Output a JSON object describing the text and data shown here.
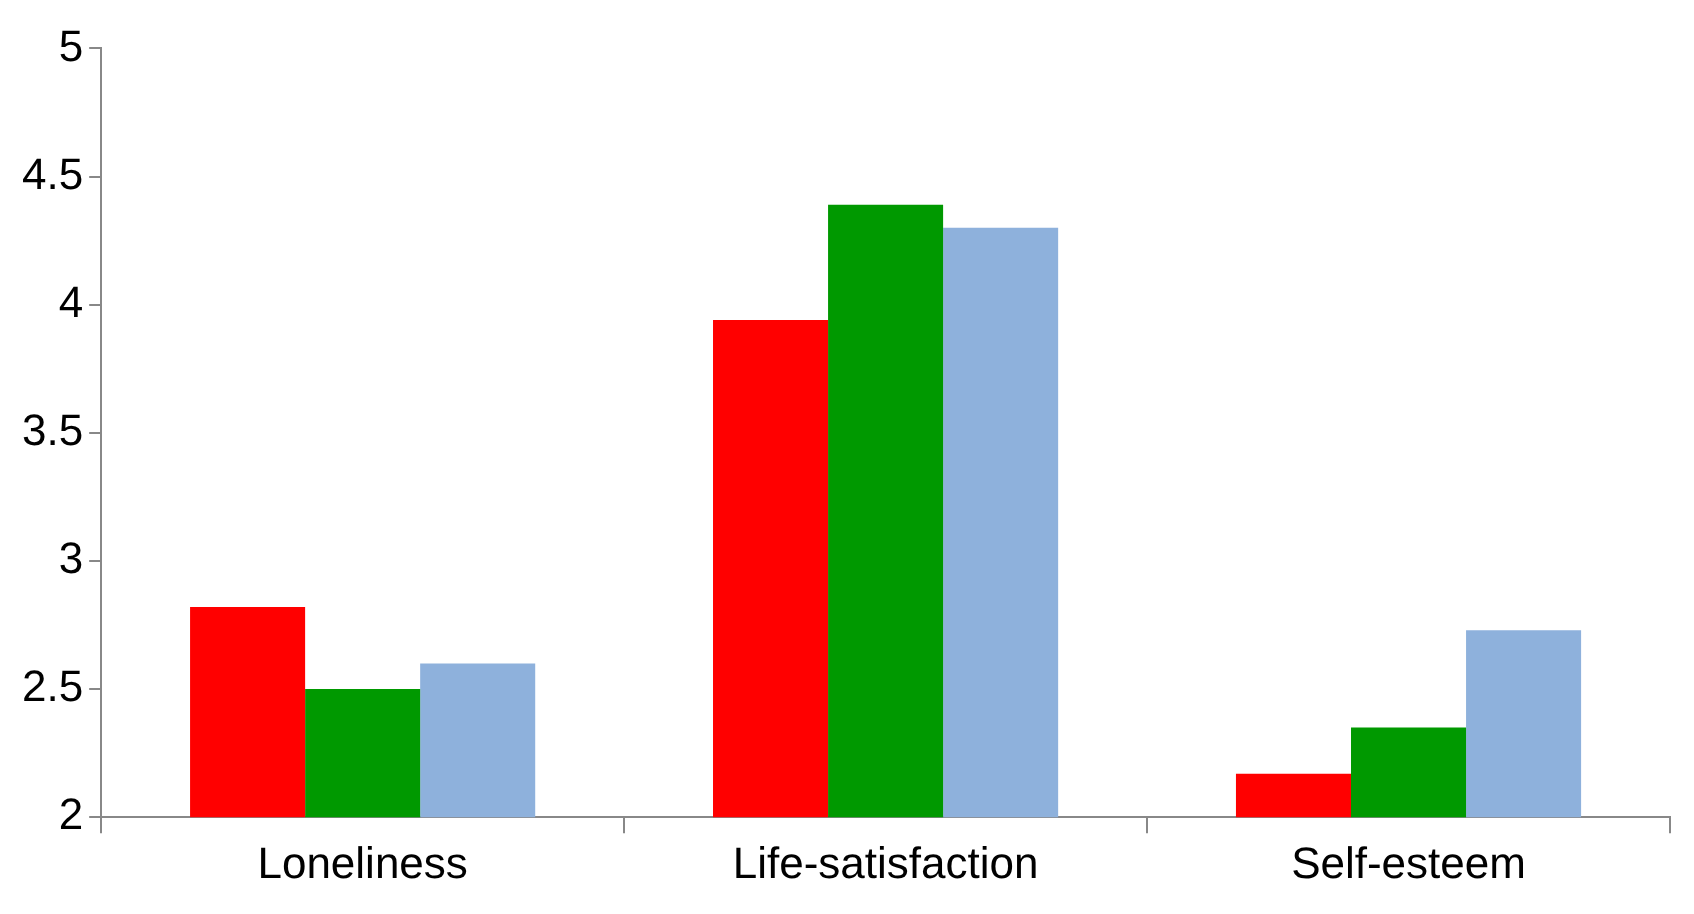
{
  "chart_data": {
    "type": "bar",
    "categories": [
      "Loneliness",
      "Life-satisfaction",
      "Self-esteem"
    ],
    "series": [
      {
        "color": "#ff0000",
        "values": [
          2.82,
          3.94,
          2.17
        ]
      },
      {
        "color": "#009900",
        "values": [
          2.5,
          4.39,
          2.35
        ]
      },
      {
        "color": "#8eb1dc",
        "values": [
          2.6,
          4.3,
          2.73
        ]
      }
    ],
    "ylim": [
      2,
      5
    ],
    "yticks": [
      2,
      2.5,
      3,
      3.5,
      4,
      4.5,
      5
    ],
    "grid": false,
    "legend": false
  }
}
